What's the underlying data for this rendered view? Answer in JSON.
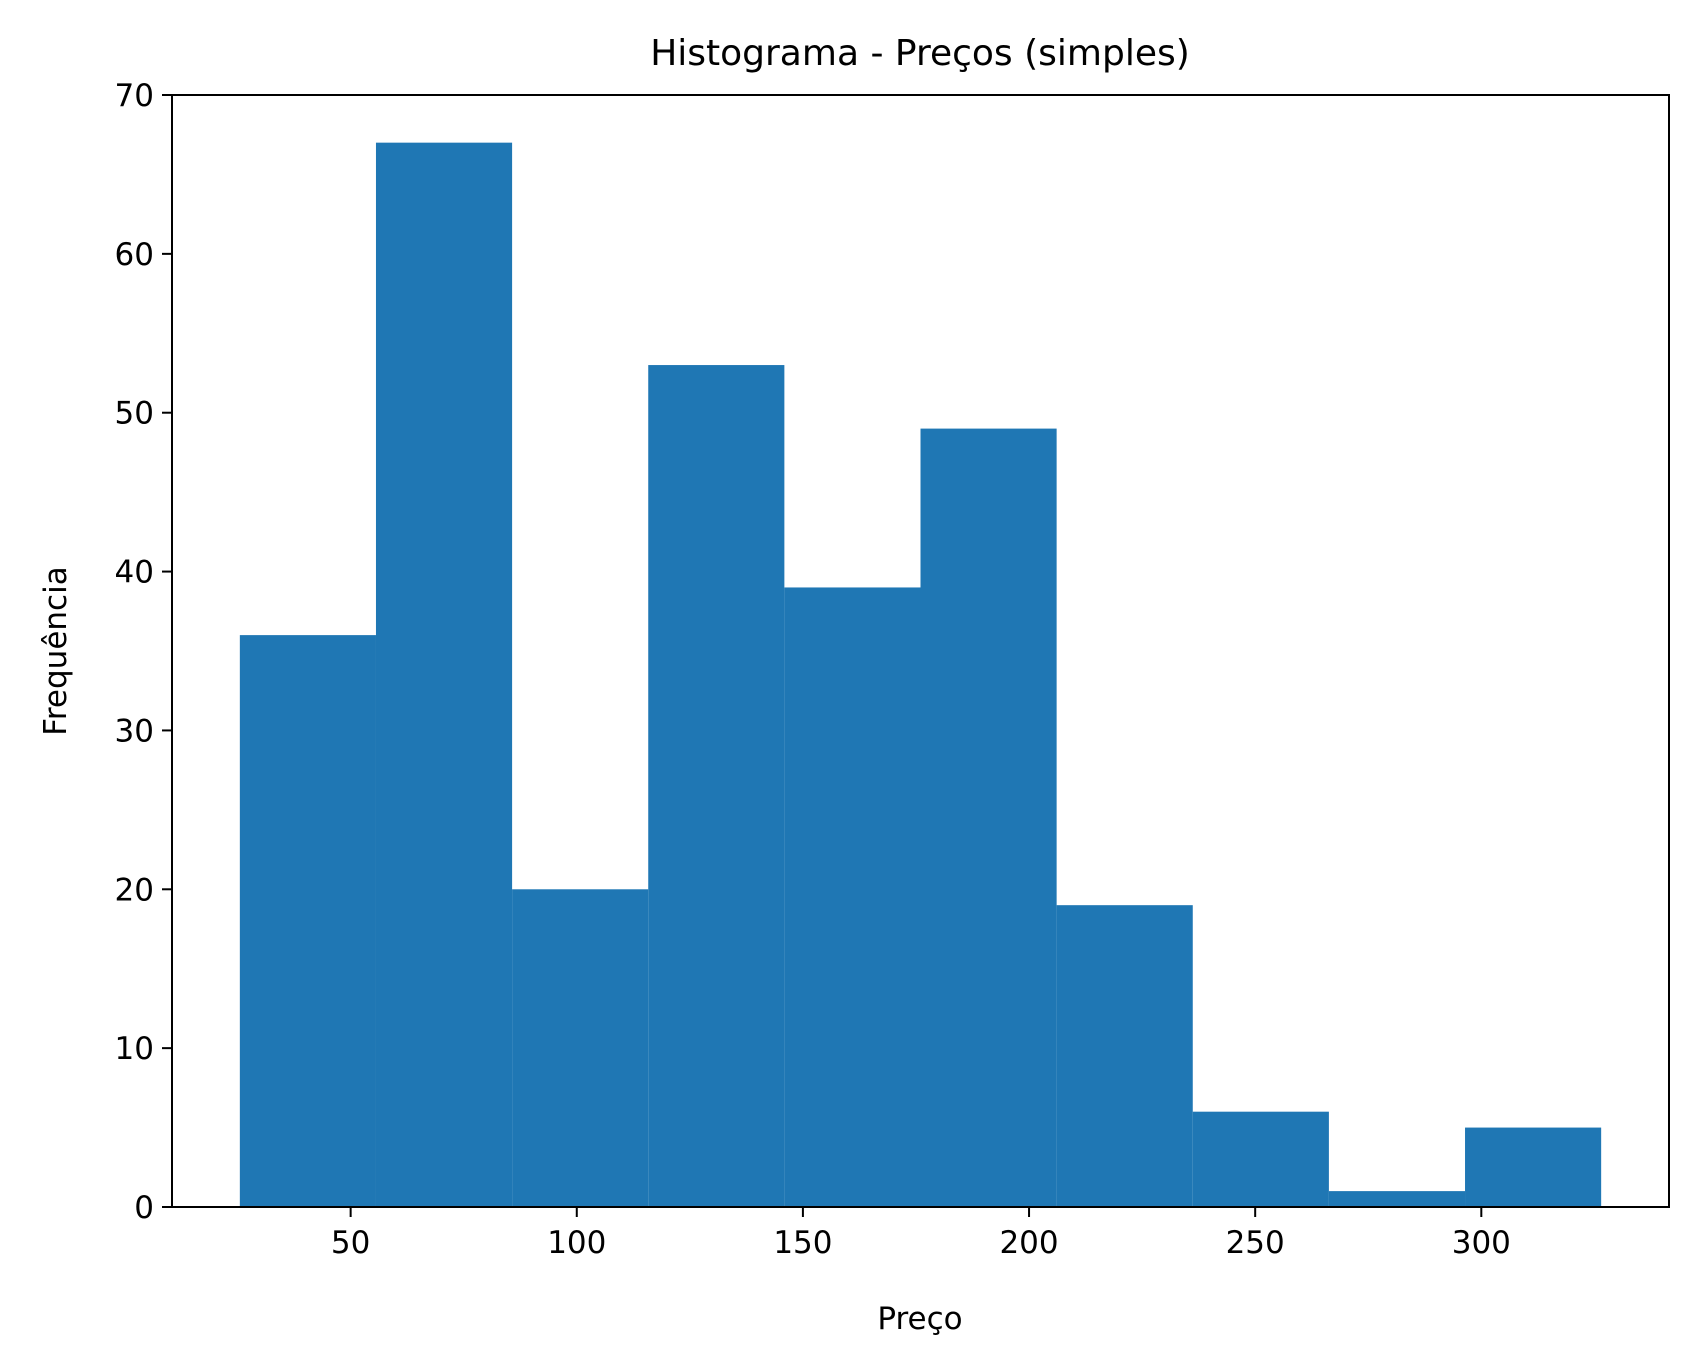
{
  "chart_data": {
    "type": "bar",
    "subtype": "histogram",
    "title": "Histograma - Preços (simples)",
    "xlabel": "Preço",
    "ylabel": "Frequência",
    "bins": [
      {
        "x0": 25.5,
        "x1": 55.6,
        "count": 36
      },
      {
        "x0": 55.6,
        "x1": 85.7,
        "count": 67
      },
      {
        "x0": 85.7,
        "x1": 115.8,
        "count": 20
      },
      {
        "x0": 115.8,
        "x1": 145.9,
        "count": 53
      },
      {
        "x0": 145.9,
        "x1": 176.0,
        "count": 39
      },
      {
        "x0": 176.0,
        "x1": 206.1,
        "count": 49
      },
      {
        "x0": 206.1,
        "x1": 236.2,
        "count": 19
      },
      {
        "x0": 236.2,
        "x1": 266.3,
        "count": 6
      },
      {
        "x0": 266.3,
        "x1": 296.4,
        "count": 1
      },
      {
        "x0": 296.4,
        "x1": 326.5,
        "count": 5
      }
    ],
    "xlim": [
      10.5,
      341.5
    ],
    "ylim": [
      0,
      70
    ],
    "xticks": [
      50,
      100,
      150,
      200,
      250,
      300
    ],
    "yticks": [
      0,
      10,
      20,
      30,
      40,
      50,
      60,
      70
    ],
    "bar_color": "#1f77b4",
    "grid": false,
    "legend": "none"
  }
}
